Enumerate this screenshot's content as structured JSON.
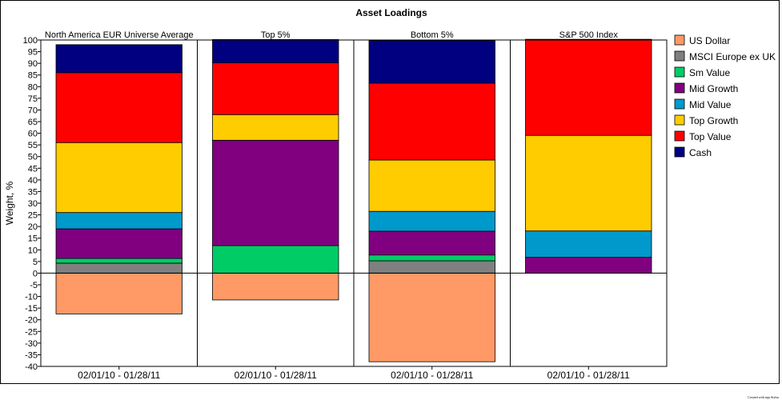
{
  "chart_data": {
    "type": "bar",
    "stacked": true,
    "title": "Asset Loadings",
    "ylabel": "Weight, %",
    "ylim": [
      -40,
      100
    ],
    "ytick_step": 5,
    "panels": [
      {
        "title": "North America EUR Universe Average",
        "xlabel": "02/01/10 - 01/28/11"
      },
      {
        "title": "Top 5%",
        "xlabel": "02/01/10 - 01/28/11"
      },
      {
        "title": "Bottom 5%",
        "xlabel": "02/01/10 - 01/28/11"
      },
      {
        "title": "S&P 500 Index",
        "xlabel": "02/01/10 - 01/28/11"
      }
    ],
    "series": [
      {
        "name": "US Dollar",
        "color": "#FF9966",
        "values": [
          -17.5,
          -11.5,
          -38,
          0
        ]
      },
      {
        "name": "MSCI Europe ex UK",
        "color": "#808080",
        "values": [
          4.3,
          0,
          5.3,
          0
        ]
      },
      {
        "name": "Sm Value",
        "color": "#00CC66",
        "values": [
          2,
          11.8,
          2.5,
          0
        ]
      },
      {
        "name": "Mid Growth",
        "color": "#800080",
        "values": [
          12.7,
          45.2,
          10.2,
          6.8
        ]
      },
      {
        "name": "Mid Value",
        "color": "#0099CC",
        "values": [
          7,
          0,
          8.5,
          11.3
        ]
      },
      {
        "name": "Top Growth",
        "color": "#FFCC00",
        "values": [
          30,
          11,
          22,
          41
        ]
      },
      {
        "name": "Top Value",
        "color": "#FF0000",
        "values": [
          30,
          22.2,
          33,
          41.2
        ]
      },
      {
        "name": "Cash",
        "color": "#000080",
        "values": [
          12,
          10,
          18.3,
          0
        ]
      }
    ]
  },
  "footer_note": "Created with mpi Stylus"
}
